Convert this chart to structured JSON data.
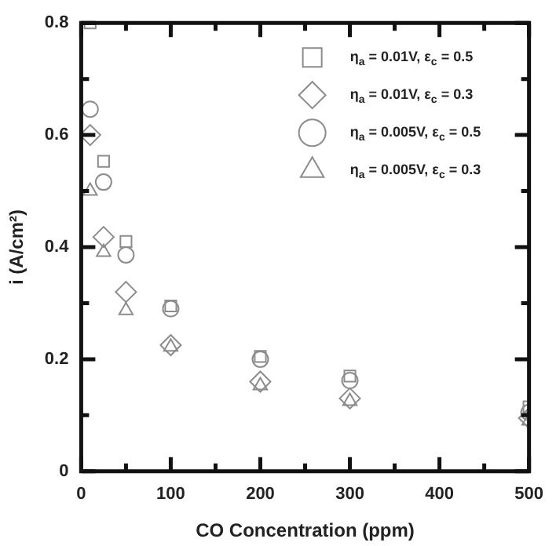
{
  "chart_data": {
    "type": "scatter",
    "xlabel": "CO Concentration (ppm)",
    "ylabel": "i (A/cm²)",
    "xlim": [
      0,
      500
    ],
    "ylim": [
      0,
      0.8
    ],
    "xticks": [
      0,
      {
        "value": 50,
        "label": null
      },
      100,
      {
        "value": 150,
        "label": null
      },
      200,
      {
        "value": 250,
        "label": null
      },
      300,
      {
        "value": 350,
        "label": null
      },
      400,
      {
        "value": 450,
        "label": null
      },
      500
    ],
    "yticks": [
      0,
      {
        "value": 0.1,
        "label": null
      },
      0.2,
      {
        "value": 0.3,
        "label": null
      },
      0.4,
      {
        "value": 0.5,
        "label": null
      },
      0.6,
      {
        "value": 0.7,
        "label": null
      },
      0.8
    ],
    "grid": false,
    "legend": "top right",
    "x": [
      10,
      25,
      50,
      100,
      200,
      300,
      500
    ],
    "series": [
      {
        "name": "η$_{a}$ = 0.01V, ε$_{c}$ = 0.5",
        "color": "#8c8c8c",
        "marker": "square",
        "values": [
          0.8,
          0.553,
          0.41,
          0.295,
          0.205,
          0.17,
          0.115
        ]
      },
      {
        "name": "η$_{a}$ = 0.01V, ε$_{c}$ = 0.3",
        "color": "#8c8c8c",
        "marker": "diamond",
        "values": [
          0.6,
          0.418,
          0.32,
          0.225,
          0.16,
          0.13,
          0.095
        ]
      },
      {
        "name": "η$_{a}$ = 0.005V, ε$_{c}$ = 0.5",
        "color": "#8c8c8c",
        "marker": "circle",
        "values": [
          0.646,
          0.516,
          0.386,
          0.29,
          0.2,
          0.162,
          0.105
        ]
      },
      {
        "name": "η$_{a}$ = 0.005V, ε$_{c}$ = 0.3",
        "color": "#8c8c8c",
        "marker": "triangle",
        "values": [
          0.5,
          0.391,
          0.287,
          0.222,
          0.153,
          0.125,
          0.09
        ]
      }
    ]
  }
}
